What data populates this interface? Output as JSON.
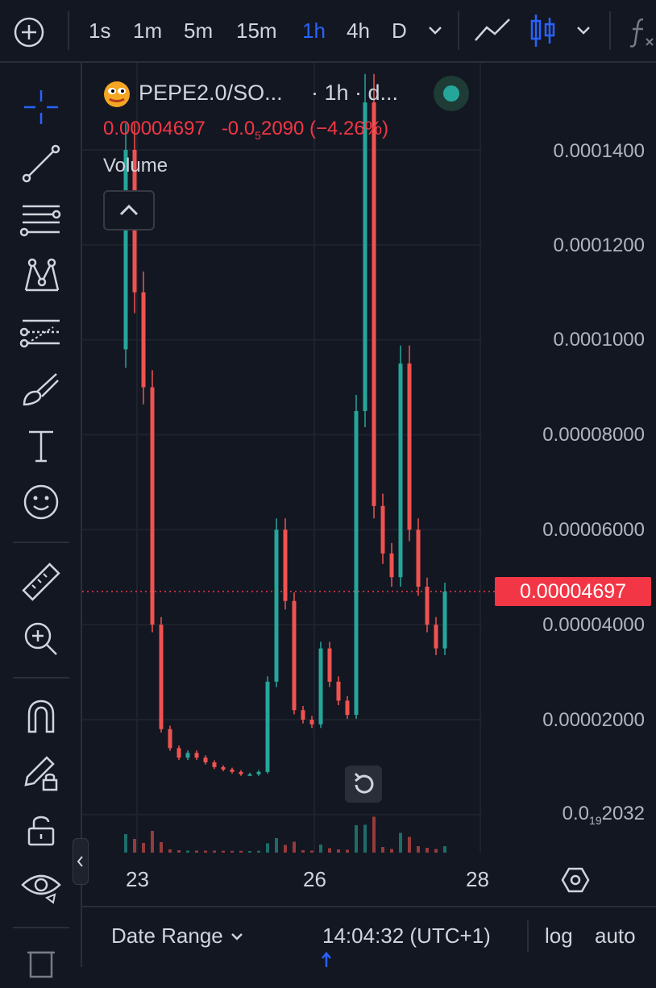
{
  "toolbar": {
    "add_label": "+",
    "intervals": [
      "1s",
      "1m",
      "5m",
      "15m",
      "1h",
      "4h",
      "D"
    ],
    "active_interval": "1h"
  },
  "legend": {
    "symbol": "PEPE2.0/SO...",
    "interval_meta": "· 1h · d...",
    "price": "0.00004697",
    "change_prefix": "-0.0",
    "change_sub": "5",
    "change_rest": "2090",
    "change_pct": "(−4.26%)",
    "volume_label": "Volume"
  },
  "price_axis": {
    "labels": [
      "0.0001400",
      "0.0001200",
      "0.0001000",
      "0.00008000",
      "0.00006000",
      "0.00004000",
      "0.00002000"
    ],
    "bottom_prefix": "0.0",
    "bottom_sub": "19",
    "bottom_rest": "2032",
    "current_price": "0.00004697"
  },
  "time_axis": {
    "labels": [
      "23",
      "26",
      "28"
    ]
  },
  "bottombar": {
    "date_range": "Date Range",
    "time": "14:04:32 (UTC+1)",
    "log": "log",
    "auto": "auto"
  },
  "colors": {
    "up": "#26a69a",
    "down": "#ef5350",
    "accent": "#2962ff",
    "background": "#131722"
  },
  "chart_data": {
    "type": "candlestick",
    "xlabel": "",
    "ylabel": "",
    "x_ticks": [
      "23",
      "26",
      "28"
    ],
    "ylim": [
      1e-05,
      0.00015
    ],
    "series": [
      {
        "values": [
          0.00014,
          0.00011,
          9e-05,
          4e-05,
          1.8e-05,
          1.4e-05,
          1.2e-05,
          1.3e-05,
          1.2e-05,
          1.1e-05,
          1e-05,
          9.5e-06,
          9e-06,
          8.5e-06,
          8.5e-06,
          9e-06,
          2.8e-05,
          6e-05,
          4.5e-05,
          2.2e-05,
          2e-05,
          1.9e-05,
          3.5e-05,
          2.8e-05,
          2.4e-05,
          2.1e-05,
          8.5e-05,
          0.00015,
          6.5e-05,
          5.5e-05,
          5e-05,
          9.5e-05,
          6e-05,
          4.8e-05,
          4e-05,
          3.5e-05,
          4.697e-05
        ]
      }
    ]
  }
}
